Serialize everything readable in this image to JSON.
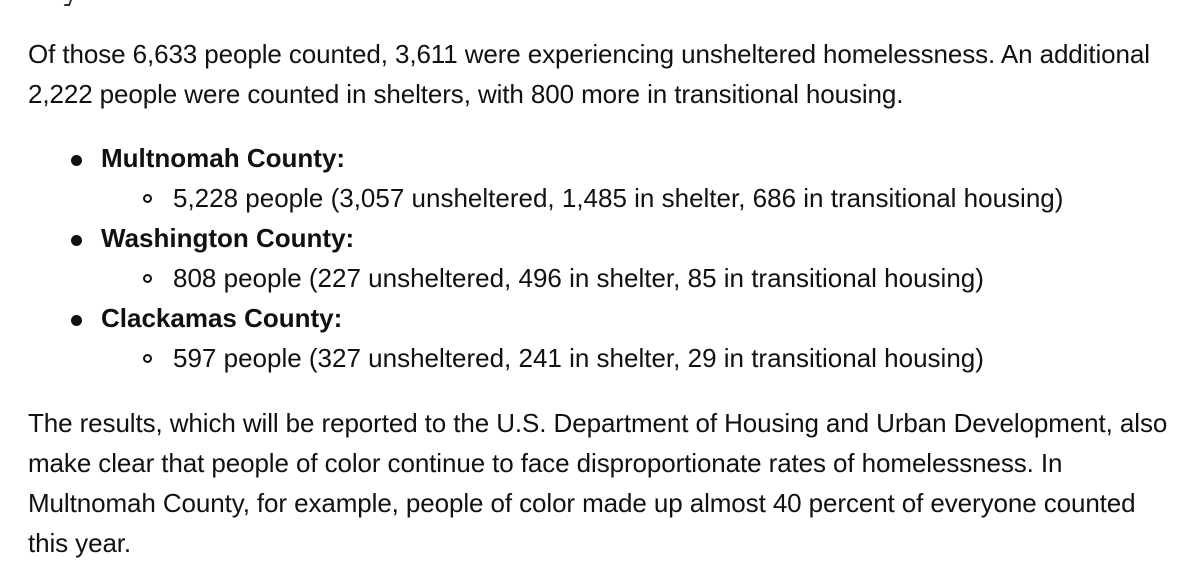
{
  "paragraph1": "Of those 6,633 people counted, 3,611 were experiencing unsheltered homelessness. An additional 2,222 people were counted in shelters, with 800 more in transitional housing.",
  "counties": [
    {
      "name": "Multnomah County:",
      "detail": "5,228 people (3,057 unsheltered, 1,485 in shelter, 686 in transitional housing)"
    },
    {
      "name": "Washington County:",
      "detail": "808 people (227 unsheltered, 496 in shelter, 85 in transitional housing)"
    },
    {
      "name": "Clackamas County:",
      "detail": "597 people (327 unsheltered, 241 in shelter, 29 in transitional housing)"
    }
  ],
  "paragraph2": "The results, which will be reported to the U.S. Department of Housing and Urban Development, also make clear that people of color continue to face disproportionate rates of homelessness. In Multnomah County, for example, people of color made up almost 40 percent of everyone counted this year."
}
